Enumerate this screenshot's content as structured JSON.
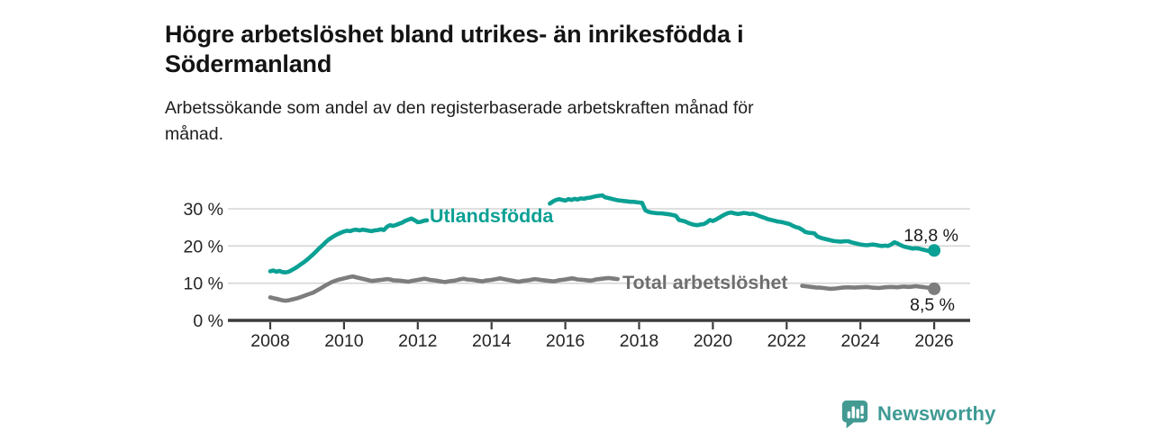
{
  "header": {
    "title_lines": [
      "Högre arbetslöshet bland utrikes- än inrikesfödda i",
      "Södermanland"
    ],
    "subtitle_lines": [
      "Arbetssökande som andel av den registerbaserade arbetskraften månad för",
      "månad."
    ]
  },
  "footer": {
    "brand": "Newsworthy"
  },
  "colors": {
    "series1": "#0ba094",
    "series2": "#7d7d7d",
    "series2_label": "#6e6e6e",
    "grid": "#d6d6d6",
    "axis": "#3c3c3c",
    "text": "#1a1a1a",
    "brand": "#3f9a94"
  },
  "chart_data": {
    "type": "line",
    "title": "Högre arbetslöshet bland utrikes- än inrikesfödda i Södermanland",
    "subtitle": "Arbetssökande som andel av den registerbaserade arbetskraften månad för månad.",
    "unit": "%",
    "grid": "horizontal",
    "legend_position": "inline-labels",
    "x_axis": {
      "ticks": [
        2008,
        2010,
        2012,
        2014,
        2016,
        2018,
        2020,
        2022,
        2024,
        2026
      ],
      "range": [
        2006.9,
        2027.0
      ]
    },
    "y_axis": {
      "ticks": [
        {
          "value": 0,
          "label": "0 %"
        },
        {
          "value": 10,
          "label": "10 %"
        },
        {
          "value": 20,
          "label": "20 %"
        },
        {
          "value": 30,
          "label": "30 %"
        }
      ],
      "range": [
        0,
        35
      ]
    },
    "series": [
      {
        "name": "Utlandsfödda",
        "color": "#0ba094",
        "end_label": "18,8 %",
        "end_value": 18.8,
        "points": [
          [
            2008.0,
            13.2
          ],
          [
            2008.08,
            13.4
          ],
          [
            2008.17,
            13.1
          ],
          [
            2008.25,
            13.3
          ],
          [
            2008.33,
            13.0
          ],
          [
            2008.42,
            12.9
          ],
          [
            2008.5,
            13.1
          ],
          [
            2008.58,
            13.5
          ],
          [
            2008.67,
            14.0
          ],
          [
            2008.75,
            14.5
          ],
          [
            2008.83,
            15.1
          ],
          [
            2008.92,
            15.7
          ],
          [
            2009.0,
            16.3
          ],
          [
            2009.08,
            17.0
          ],
          [
            2009.17,
            17.8
          ],
          [
            2009.25,
            18.6
          ],
          [
            2009.33,
            19.4
          ],
          [
            2009.42,
            20.2
          ],
          [
            2009.5,
            21.0
          ],
          [
            2009.58,
            21.7
          ],
          [
            2009.67,
            22.3
          ],
          [
            2009.75,
            22.8
          ],
          [
            2009.83,
            23.2
          ],
          [
            2009.92,
            23.6
          ],
          [
            2010.0,
            23.9
          ],
          [
            2010.08,
            24.1
          ],
          [
            2010.17,
            24.0
          ],
          [
            2010.25,
            24.3
          ],
          [
            2010.33,
            24.4
          ],
          [
            2010.42,
            24.2
          ],
          [
            2010.5,
            24.4
          ],
          [
            2010.58,
            24.3
          ],
          [
            2010.67,
            24.1
          ],
          [
            2010.75,
            24.0
          ],
          [
            2010.83,
            24.2
          ],
          [
            2010.92,
            24.3
          ],
          [
            2011.0,
            24.5
          ],
          [
            2011.08,
            24.3
          ],
          [
            2011.17,
            25.2
          ],
          [
            2011.25,
            25.6
          ],
          [
            2011.33,
            25.4
          ],
          [
            2011.42,
            25.7
          ],
          [
            2011.5,
            26.0
          ],
          [
            2011.58,
            26.3
          ],
          [
            2011.67,
            26.8
          ],
          [
            2011.75,
            27.1
          ],
          [
            2011.83,
            27.4
          ],
          [
            2011.92,
            26.9
          ],
          [
            2012.0,
            26.4
          ],
          [
            2012.08,
            26.5
          ],
          [
            2012.17,
            26.8
          ],
          [
            2012.25,
            26.9
          ],
          [
            2015.58,
            31.4
          ],
          [
            2015.67,
            32.0
          ],
          [
            2015.75,
            32.4
          ],
          [
            2015.83,
            32.6
          ],
          [
            2015.92,
            32.4
          ],
          [
            2016.0,
            32.2
          ],
          [
            2016.08,
            32.6
          ],
          [
            2016.17,
            32.4
          ],
          [
            2016.25,
            32.7
          ],
          [
            2016.33,
            32.5
          ],
          [
            2016.42,
            32.8
          ],
          [
            2016.5,
            32.7
          ],
          [
            2016.58,
            32.9
          ],
          [
            2016.67,
            33.0
          ],
          [
            2016.75,
            33.2
          ],
          [
            2016.83,
            33.4
          ],
          [
            2016.92,
            33.5
          ],
          [
            2017.0,
            33.6
          ],
          [
            2017.08,
            33.1
          ],
          [
            2017.17,
            32.9
          ],
          [
            2017.25,
            32.7
          ],
          [
            2017.33,
            32.5
          ],
          [
            2017.42,
            32.3
          ],
          [
            2017.5,
            32.2
          ],
          [
            2017.58,
            32.1
          ],
          [
            2017.67,
            32.0
          ],
          [
            2017.75,
            31.9
          ],
          [
            2017.83,
            31.9
          ],
          [
            2017.92,
            31.8
          ],
          [
            2018.0,
            31.7
          ],
          [
            2018.08,
            31.6
          ],
          [
            2018.17,
            29.6
          ],
          [
            2018.25,
            29.2
          ],
          [
            2018.33,
            29.0
          ],
          [
            2018.42,
            28.9
          ],
          [
            2018.5,
            28.8
          ],
          [
            2018.58,
            28.8
          ],
          [
            2018.67,
            28.7
          ],
          [
            2018.75,
            28.6
          ],
          [
            2018.83,
            28.5
          ],
          [
            2018.92,
            28.3
          ],
          [
            2019.0,
            28.1
          ],
          [
            2019.08,
            27.0
          ],
          [
            2019.17,
            26.8
          ],
          [
            2019.25,
            26.6
          ],
          [
            2019.33,
            26.2
          ],
          [
            2019.42,
            25.9
          ],
          [
            2019.5,
            25.7
          ],
          [
            2019.58,
            25.6
          ],
          [
            2019.67,
            25.8
          ],
          [
            2019.75,
            25.9
          ],
          [
            2019.83,
            26.3
          ],
          [
            2019.92,
            27.0
          ],
          [
            2020.0,
            26.7
          ],
          [
            2020.08,
            27.1
          ],
          [
            2020.17,
            27.6
          ],
          [
            2020.25,
            28.1
          ],
          [
            2020.33,
            28.5
          ],
          [
            2020.42,
            28.9
          ],
          [
            2020.5,
            29.0
          ],
          [
            2020.58,
            28.8
          ],
          [
            2020.67,
            28.6
          ],
          [
            2020.75,
            28.7
          ],
          [
            2020.83,
            28.9
          ],
          [
            2020.92,
            28.8
          ],
          [
            2021.0,
            28.6
          ],
          [
            2021.08,
            28.7
          ],
          [
            2021.17,
            28.4
          ],
          [
            2021.25,
            28.1
          ],
          [
            2021.33,
            27.8
          ],
          [
            2021.42,
            27.5
          ],
          [
            2021.5,
            27.2
          ],
          [
            2021.58,
            27.0
          ],
          [
            2021.67,
            26.8
          ],
          [
            2021.75,
            26.6
          ],
          [
            2021.83,
            26.5
          ],
          [
            2021.92,
            26.3
          ],
          [
            2022.0,
            26.1
          ],
          [
            2022.08,
            25.9
          ],
          [
            2022.17,
            25.4
          ],
          [
            2022.25,
            25.1
          ],
          [
            2022.33,
            24.9
          ],
          [
            2022.42,
            24.4
          ],
          [
            2022.5,
            23.8
          ],
          [
            2022.58,
            23.6
          ],
          [
            2022.67,
            23.5
          ],
          [
            2022.75,
            23.4
          ],
          [
            2022.83,
            22.6
          ],
          [
            2022.92,
            22.2
          ],
          [
            2023.0,
            22.0
          ],
          [
            2023.08,
            21.8
          ],
          [
            2023.17,
            21.6
          ],
          [
            2023.25,
            21.4
          ],
          [
            2023.33,
            21.3
          ],
          [
            2023.42,
            21.2
          ],
          [
            2023.5,
            21.2
          ],
          [
            2023.58,
            21.3
          ],
          [
            2023.67,
            21.3
          ],
          [
            2023.75,
            21.0
          ],
          [
            2023.83,
            20.8
          ],
          [
            2023.92,
            20.6
          ],
          [
            2024.0,
            20.4
          ],
          [
            2024.08,
            20.3
          ],
          [
            2024.17,
            20.2
          ],
          [
            2024.25,
            20.3
          ],
          [
            2024.33,
            20.4
          ],
          [
            2024.42,
            20.3
          ],
          [
            2024.5,
            20.1
          ],
          [
            2024.58,
            20.0
          ],
          [
            2024.67,
            20.1
          ],
          [
            2024.75,
            20.0
          ],
          [
            2024.83,
            20.4
          ],
          [
            2024.92,
            21.0
          ],
          [
            2025.0,
            20.7
          ],
          [
            2025.08,
            20.3
          ],
          [
            2025.17,
            19.9
          ],
          [
            2025.25,
            19.7
          ],
          [
            2025.33,
            19.5
          ],
          [
            2025.42,
            19.3
          ],
          [
            2025.5,
            19.4
          ],
          [
            2025.58,
            19.3
          ],
          [
            2025.67,
            19.1
          ],
          [
            2025.75,
            18.9
          ],
          [
            2025.83,
            18.7
          ],
          [
            2025.92,
            18.6
          ],
          [
            2026.0,
            18.8
          ]
        ]
      },
      {
        "name": "Total arbetslöshet",
        "color": "#7d7d7d",
        "end_label": "8,5 %",
        "end_value": 8.5,
        "points": [
          [
            2008.0,
            6.2
          ],
          [
            2008.08,
            6.0
          ],
          [
            2008.17,
            5.8
          ],
          [
            2008.25,
            5.6
          ],
          [
            2008.33,
            5.4
          ],
          [
            2008.42,
            5.3
          ],
          [
            2008.5,
            5.4
          ],
          [
            2008.58,
            5.6
          ],
          [
            2008.67,
            5.8
          ],
          [
            2008.75,
            6.0
          ],
          [
            2008.83,
            6.3
          ],
          [
            2008.92,
            6.6
          ],
          [
            2009.0,
            6.9
          ],
          [
            2009.17,
            7.5
          ],
          [
            2009.33,
            8.4
          ],
          [
            2009.5,
            9.4
          ],
          [
            2009.67,
            10.3
          ],
          [
            2009.83,
            10.9
          ],
          [
            2010.0,
            11.3
          ],
          [
            2010.17,
            11.7
          ],
          [
            2010.25,
            11.8
          ],
          [
            2010.33,
            11.6
          ],
          [
            2010.5,
            11.2
          ],
          [
            2010.67,
            10.8
          ],
          [
            2010.75,
            10.6
          ],
          [
            2010.83,
            10.7
          ],
          [
            2011.0,
            10.9
          ],
          [
            2011.17,
            11.1
          ],
          [
            2011.25,
            11.0
          ],
          [
            2011.33,
            10.8
          ],
          [
            2011.5,
            10.7
          ],
          [
            2011.67,
            10.5
          ],
          [
            2011.75,
            10.4
          ],
          [
            2011.83,
            10.6
          ],
          [
            2012.0,
            10.9
          ],
          [
            2012.17,
            11.2
          ],
          [
            2012.25,
            11.1
          ],
          [
            2012.33,
            10.9
          ],
          [
            2012.5,
            10.7
          ],
          [
            2012.67,
            10.4
          ],
          [
            2012.75,
            10.3
          ],
          [
            2012.83,
            10.5
          ],
          [
            2013.0,
            10.7
          ],
          [
            2013.17,
            11.1
          ],
          [
            2013.25,
            11.2
          ],
          [
            2013.33,
            11.0
          ],
          [
            2013.5,
            10.9
          ],
          [
            2013.67,
            10.6
          ],
          [
            2013.75,
            10.5
          ],
          [
            2013.83,
            10.7
          ],
          [
            2014.0,
            10.9
          ],
          [
            2014.17,
            11.2
          ],
          [
            2014.25,
            11.3
          ],
          [
            2014.33,
            11.1
          ],
          [
            2014.5,
            10.8
          ],
          [
            2014.67,
            10.5
          ],
          [
            2014.75,
            10.4
          ],
          [
            2014.83,
            10.6
          ],
          [
            2015.0,
            10.8
          ],
          [
            2015.17,
            11.1
          ],
          [
            2015.25,
            11.0
          ],
          [
            2015.33,
            10.9
          ],
          [
            2015.5,
            10.7
          ],
          [
            2015.67,
            10.5
          ],
          [
            2015.75,
            10.6
          ],
          [
            2015.83,
            10.8
          ],
          [
            2016.0,
            11.0
          ],
          [
            2016.17,
            11.3
          ],
          [
            2016.25,
            11.2
          ],
          [
            2016.33,
            11.0
          ],
          [
            2016.5,
            10.9
          ],
          [
            2016.67,
            10.7
          ],
          [
            2016.75,
            10.8
          ],
          [
            2016.83,
            11.0
          ],
          [
            2017.0,
            11.2
          ],
          [
            2017.17,
            11.4
          ],
          [
            2017.25,
            11.3
          ],
          [
            2017.33,
            11.2
          ],
          [
            2017.42,
            11.1
          ],
          [
            2022.42,
            9.3
          ],
          [
            2022.5,
            9.2
          ],
          [
            2022.58,
            9.1
          ],
          [
            2022.67,
            9.0
          ],
          [
            2022.75,
            8.9
          ],
          [
            2022.83,
            8.8
          ],
          [
            2022.92,
            8.8
          ],
          [
            2023.0,
            8.7
          ],
          [
            2023.17,
            8.5
          ],
          [
            2023.33,
            8.6
          ],
          [
            2023.5,
            8.8
          ],
          [
            2023.67,
            8.9
          ],
          [
            2023.83,
            8.8
          ],
          [
            2024.0,
            8.9
          ],
          [
            2024.17,
            9.0
          ],
          [
            2024.33,
            8.8
          ],
          [
            2024.5,
            8.7
          ],
          [
            2024.67,
            8.9
          ],
          [
            2024.83,
            9.0
          ],
          [
            2025.0,
            8.9
          ],
          [
            2025.17,
            9.1
          ],
          [
            2025.33,
            9.0
          ],
          [
            2025.5,
            9.2
          ],
          [
            2025.67,
            9.0
          ],
          [
            2025.83,
            8.8
          ],
          [
            2026.0,
            8.5
          ]
        ]
      }
    ]
  }
}
